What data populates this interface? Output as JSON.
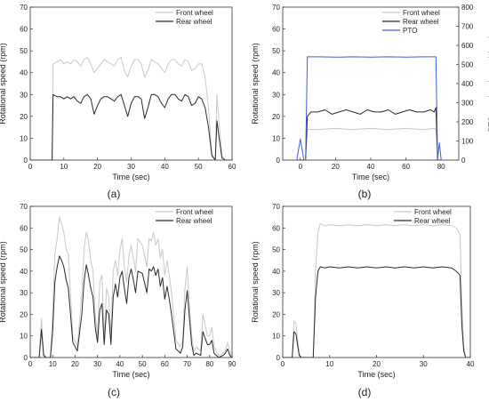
{
  "chart_data": [
    {
      "panel": "(a)",
      "type": "line",
      "xlabel": "Time (sec)",
      "ylabel": "Rotational speed (rpm)",
      "xlim": [
        0,
        60
      ],
      "ylim": [
        0,
        70
      ],
      "xticks": [
        0,
        10,
        20,
        30,
        40,
        50,
        60
      ],
      "yticks": [
        0,
        10,
        20,
        30,
        40,
        50,
        60,
        70
      ],
      "legend_position": "top-right",
      "series": [
        {
          "name": "Front wheel",
          "color": "#c8c8c8",
          "x": [
            0,
            6.5,
            6.8,
            8,
            9,
            10,
            11,
            12,
            13,
            14,
            15,
            16,
            17,
            18,
            19,
            20,
            21,
            22,
            23,
            24,
            25,
            26,
            27,
            28,
            29,
            30,
            31,
            32,
            33,
            34,
            35,
            36,
            37,
            38,
            39,
            40,
            41,
            42,
            43,
            44,
            45,
            46,
            47,
            48,
            49,
            50,
            51,
            52,
            53,
            54,
            55,
            55.5,
            56,
            57,
            58,
            60
          ],
          "y": [
            0,
            0,
            44,
            45,
            46,
            44,
            45,
            44,
            46,
            45,
            43,
            46,
            47,
            44,
            40,
            42,
            44,
            46,
            45,
            44,
            43,
            46,
            47,
            41,
            38,
            43,
            46,
            46,
            44,
            38,
            41,
            46,
            45,
            44,
            42,
            40,
            44,
            46,
            46,
            44,
            43,
            46,
            45,
            41,
            42,
            44,
            44,
            38,
            24,
            3,
            0,
            30,
            20,
            2,
            0,
            0
          ]
        },
        {
          "name": "Rear wheel",
          "color": "#2a2a2a",
          "x": [
            0,
            6.5,
            6.8,
            8,
            9,
            10,
            11,
            12,
            13,
            14,
            15,
            16,
            17,
            18,
            19,
            20,
            21,
            22,
            23,
            24,
            25,
            26,
            27,
            28,
            29,
            30,
            31,
            32,
            33,
            34,
            35,
            36,
            37,
            38,
            39,
            40,
            41,
            42,
            43,
            44,
            45,
            46,
            47,
            48,
            49,
            50,
            51,
            52,
            53,
            54,
            55,
            55.5,
            56,
            57,
            58,
            60
          ],
          "y": [
            0,
            0,
            30,
            29,
            29,
            28,
            29,
            28,
            29,
            27,
            26,
            29,
            30,
            28,
            21,
            25,
            28,
            29,
            29,
            28,
            27,
            29,
            30,
            25,
            20,
            26,
            29,
            29,
            28,
            19,
            24,
            30,
            30,
            29,
            26,
            24,
            28,
            30,
            30,
            28,
            27,
            30,
            29,
            25,
            26,
            29,
            28,
            24,
            15,
            2,
            0,
            18,
            12,
            1,
            0,
            0
          ]
        }
      ]
    },
    {
      "panel": "(b)",
      "type": "line",
      "xlabel": "Time (sec)",
      "ylabel": "Rotational speed (rpm)",
      "y2label": "PTO rotational speed (rpm)",
      "xlim": [
        -10,
        90
      ],
      "ylim": [
        0,
        70
      ],
      "y2lim": [
        0,
        800
      ],
      "xticks": [
        0,
        20,
        40,
        60,
        80
      ],
      "yticks": [
        0,
        10,
        20,
        30,
        40,
        50,
        60,
        70
      ],
      "y2ticks": [
        0,
        100,
        200,
        300,
        400,
        500,
        600,
        700,
        800
      ],
      "legend_position": "top-right",
      "series": [
        {
          "name": "Front wheel",
          "color": "#c8c8c8",
          "axis": "left",
          "x": [
            -10,
            3,
            4,
            10,
            20,
            30,
            40,
            50,
            60,
            70,
            76,
            77,
            78,
            90
          ],
          "y": [
            0,
            0,
            14,
            14,
            14.5,
            14,
            14.5,
            14,
            14.5,
            14,
            14.5,
            14,
            0,
            0
          ]
        },
        {
          "name": "Rear wheel",
          "color": "#2a2a2a",
          "axis": "left",
          "x": [
            -10,
            3,
            4,
            6,
            10,
            14,
            18,
            22,
            26,
            30,
            34,
            38,
            42,
            46,
            50,
            54,
            58,
            62,
            66,
            70,
            74,
            76,
            77,
            78,
            90
          ],
          "y": [
            0,
            0,
            20,
            22,
            22,
            23,
            21,
            22,
            23,
            22,
            21,
            23,
            22,
            22,
            23,
            21,
            22,
            23,
            22,
            22,
            23,
            22,
            24,
            0,
            0
          ]
        },
        {
          "name": "PTO",
          "color": "#3b5fd6",
          "axis": "right",
          "x": [
            -10,
            -2,
            0,
            2,
            3,
            4,
            10,
            20,
            30,
            40,
            50,
            60,
            70,
            77,
            78,
            79,
            80,
            82,
            90
          ],
          "y": [
            0,
            0,
            110,
            0,
            0,
            540,
            540,
            538,
            540,
            538,
            540,
            538,
            540,
            540,
            0,
            90,
            0,
            0,
            0
          ]
        }
      ]
    },
    {
      "panel": "(c)",
      "type": "line",
      "xlabel": "Time (sec)",
      "ylabel": "Rotational speed (rpm)",
      "xlim": [
        0,
        90
      ],
      "ylim": [
        0,
        70
      ],
      "xticks": [
        0,
        10,
        20,
        30,
        40,
        50,
        60,
        70,
        80,
        90
      ],
      "yticks": [
        0,
        10,
        20,
        30,
        40,
        50,
        60,
        70
      ],
      "legend_position": "top-right",
      "series": [
        {
          "name": "Front wheel",
          "color": "#c8c8c8",
          "x": [
            0,
            4,
            5,
            6,
            7,
            9,
            10,
            11,
            12,
            13,
            14,
            15,
            16,
            17,
            19,
            21,
            23,
            24,
            25,
            26,
            27,
            28,
            29,
            30,
            31,
            32,
            33,
            34,
            35,
            36,
            37,
            38,
            39,
            40,
            41,
            42,
            43,
            44,
            45,
            46,
            47,
            48,
            50,
            52,
            53,
            54,
            55,
            56,
            57,
            58,
            59,
            60,
            61,
            62,
            63,
            65,
            67,
            68,
            69,
            70,
            71,
            72,
            73,
            74,
            76,
            77,
            78,
            79,
            80,
            81,
            82,
            84,
            86,
            87,
            88,
            89,
            90
          ],
          "y": [
            0,
            0,
            18,
            2,
            0,
            0,
            20,
            48,
            55,
            65,
            62,
            58,
            50,
            48,
            10,
            5,
            30,
            50,
            58,
            54,
            45,
            40,
            20,
            10,
            35,
            38,
            10,
            32,
            28,
            10,
            40,
            45,
            38,
            50,
            55,
            42,
            35,
            47,
            52,
            46,
            40,
            55,
            52,
            42,
            55,
            54,
            58,
            52,
            55,
            46,
            50,
            38,
            45,
            38,
            30,
            8,
            5,
            8,
            32,
            42,
            25,
            10,
            3,
            5,
            3,
            20,
            15,
            10,
            10,
            14,
            5,
            1,
            2,
            3,
            7,
            3,
            0
          ]
        },
        {
          "name": "Rear wheel",
          "color": "#2a2a2a",
          "x": [
            0,
            4,
            5,
            6,
            7,
            9,
            10,
            11,
            12,
            13,
            14,
            15,
            16,
            17,
            19,
            21,
            23,
            24,
            25,
            26,
            27,
            28,
            29,
            30,
            31,
            32,
            33,
            34,
            35,
            36,
            37,
            38,
            39,
            40,
            41,
            42,
            43,
            44,
            45,
            46,
            47,
            48,
            50,
            52,
            53,
            54,
            55,
            56,
            57,
            58,
            59,
            60,
            61,
            62,
            63,
            65,
            67,
            68,
            69,
            70,
            71,
            72,
            73,
            74,
            76,
            77,
            78,
            79,
            80,
            81,
            82,
            84,
            86,
            87,
            88,
            89,
            90
          ],
          "y": [
            0,
            0,
            13,
            1,
            0,
            0,
            12,
            35,
            42,
            47,
            45,
            42,
            36,
            32,
            7,
            3,
            20,
            35,
            43,
            38,
            32,
            28,
            14,
            7,
            22,
            25,
            6,
            22,
            20,
            6,
            28,
            34,
            28,
            37,
            40,
            32,
            25,
            37,
            41,
            36,
            30,
            40,
            39,
            30,
            41,
            40,
            42,
            38,
            41,
            33,
            37,
            27,
            33,
            27,
            20,
            4,
            2,
            5,
            22,
            31,
            18,
            6,
            1,
            2,
            1,
            12,
            9,
            6,
            6,
            8,
            2,
            0,
            1,
            2,
            4,
            1,
            0
          ]
        }
      ]
    },
    {
      "panel": "(d)",
      "type": "line",
      "xlabel": "Time (sec)",
      "ylabel": "Rotational speed (rpm)",
      "xlim": [
        0,
        40
      ],
      "ylim": [
        0,
        70
      ],
      "xticks": [
        0,
        10,
        20,
        30,
        40
      ],
      "yticks": [
        0,
        10,
        20,
        30,
        40,
        50,
        60,
        70
      ],
      "legend_position": "top-right",
      "series": [
        {
          "name": "Front wheel",
          "color": "#c8c8c8",
          "x": [
            0,
            2,
            2.4,
            2.8,
            3.5,
            4,
            6.5,
            7,
            7.5,
            8,
            9,
            10,
            12,
            14,
            16,
            18,
            20,
            22,
            24,
            26,
            28,
            30,
            32,
            34,
            36,
            37,
            37.8,
            38.2,
            38.6,
            39,
            40
          ],
          "y": [
            0,
            0,
            17,
            16,
            2,
            0,
            0,
            40,
            58,
            62,
            61,
            61.5,
            61,
            61.5,
            61,
            61.5,
            61,
            61.5,
            61,
            61.5,
            61,
            61.5,
            61,
            61.5,
            61,
            60,
            57,
            25,
            5,
            0,
            0
          ]
        },
        {
          "name": "Rear wheel",
          "color": "#2a2a2a",
          "x": [
            0,
            2,
            2.4,
            2.8,
            3.5,
            4,
            6.5,
            7,
            7.5,
            8,
            9,
            10,
            12,
            14,
            16,
            18,
            20,
            22,
            24,
            26,
            28,
            30,
            32,
            34,
            36,
            37,
            37.8,
            38.2,
            38.6,
            39,
            40
          ],
          "y": [
            0,
            0,
            12,
            11,
            1,
            0,
            0,
            28,
            40,
            42,
            41.5,
            42,
            41.5,
            42,
            41.5,
            42,
            41.5,
            42,
            41.5,
            42,
            41.5,
            42,
            41.5,
            42,
            41.5,
            40,
            38,
            15,
            3,
            0,
            0
          ]
        }
      ]
    }
  ]
}
